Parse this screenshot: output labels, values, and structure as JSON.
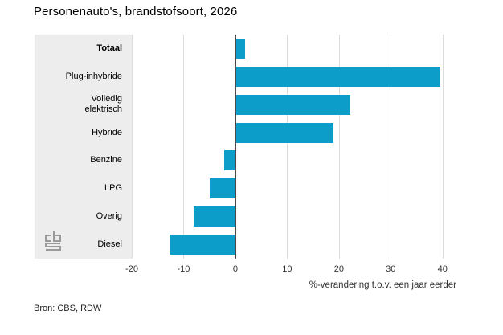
{
  "title": "Personenauto's, brandstofsoort, 2026",
  "source": "Bron: CBS, RDW",
  "logo_name": "cbs-logo",
  "colors": {
    "bar": "#0d9dc9",
    "panel": "#ededed",
    "grid": "#dcdcdc",
    "axis_dark": "#4a4a4c",
    "logo": "#9b9b9b"
  },
  "chart_data": {
    "type": "bar",
    "orientation": "horizontal",
    "title": "Personenauto's, brandstofsoort, 2026",
    "categories": [
      "Totaal",
      "Plug-inhybride",
      "Volledig elektrisch",
      "Hybride",
      "Benzine",
      "LPG",
      "Overig",
      "Diesel"
    ],
    "values": [
      1.7,
      39.4,
      22.0,
      18.8,
      -2.1,
      -4.9,
      -8.1,
      -12.6
    ],
    "emphasized_category": "Totaal",
    "xlabel": "%-verandering t.o.v. een jaar eerder",
    "xticks": [
      -20,
      -10,
      0,
      10,
      20,
      30,
      40
    ],
    "xlim": [
      -20,
      45
    ],
    "grid": true,
    "legend": false
  }
}
